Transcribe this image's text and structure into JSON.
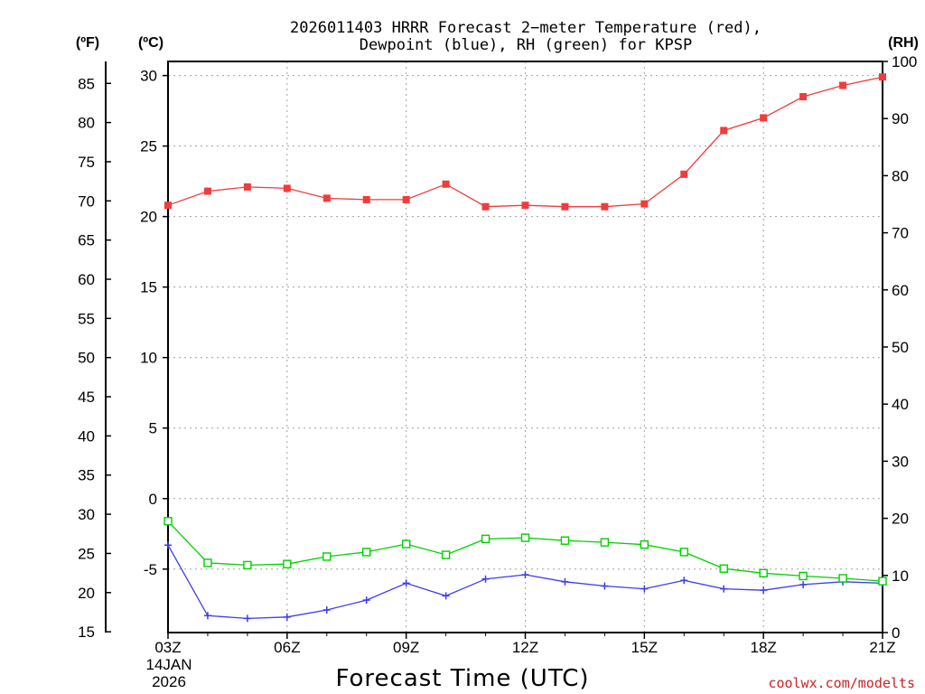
{
  "chart_data": {
    "type": "line",
    "title_line1": "2026011403 HRRR Forecast 2−meter Temperature (red),",
    "title_line2": "Dewpoint (blue), RH (green) for KPSP",
    "xlabel": "Forecast Time (UTC)",
    "credit": "coolwx.com/modelts",
    "units": {
      "fahrenheit": "(ºF)",
      "celsius": "(ºC)",
      "rh": "(RH)"
    },
    "x_hours": [
      3,
      4,
      5,
      6,
      7,
      8,
      9,
      10,
      11,
      12,
      13,
      14,
      15,
      16,
      17,
      18,
      19,
      20,
      21
    ],
    "x_ticks": [
      {
        "hour": 3,
        "label": "03Z"
      },
      {
        "hour": 6,
        "label": "06Z"
      },
      {
        "hour": 9,
        "label": "09Z"
      },
      {
        "hour": 12,
        "label": "12Z"
      },
      {
        "hour": 15,
        "label": "15Z"
      },
      {
        "hour": 18,
        "label": "18Z"
      },
      {
        "hour": 21,
        "label": "21Z"
      }
    ],
    "date_labels": [
      "14JAN",
      "2026"
    ],
    "celsius_axis": {
      "min": -9.5,
      "max": 31,
      "ticks": [
        -5,
        0,
        5,
        10,
        15,
        20,
        25,
        30
      ]
    },
    "fahrenheit_ticks": [
      15,
      20,
      25,
      30,
      35,
      40,
      45,
      50,
      55,
      60,
      65,
      70,
      75,
      80,
      85
    ],
    "rh_axis": {
      "min": 0,
      "max": 100,
      "ticks": [
        0,
        10,
        20,
        30,
        40,
        50,
        60,
        70,
        80,
        90,
        100
      ]
    },
    "series": [
      {
        "name": "Temperature",
        "axis": "celsius",
        "color": "#f03c3c",
        "marker": "filled-square",
        "values": [
          20.8,
          21.8,
          22.1,
          22.0,
          21.3,
          21.2,
          21.2,
          22.3,
          20.7,
          20.8,
          20.7,
          20.7,
          20.9,
          23.0,
          26.1,
          27.0,
          28.5,
          29.3,
          29.9
        ]
      },
      {
        "name": "Dewpoint",
        "axis": "celsius",
        "color": "#3c3cf0",
        "marker": "plus",
        "values": [
          -3.3,
          -8.3,
          -8.5,
          -8.4,
          -7.9,
          -7.2,
          -6.0,
          -6.9,
          -5.7,
          -5.4,
          -5.9,
          -6.2,
          -6.4,
          -5.8,
          -6.4,
          -6.5,
          -6.1,
          -5.9,
          -6.0
        ]
      },
      {
        "name": "RH",
        "axis": "rh",
        "color": "#00d000",
        "marker": "open-square",
        "values": [
          19.5,
          12.2,
          11.8,
          12.0,
          13.3,
          14.1,
          15.5,
          13.6,
          16.4,
          16.6,
          16.1,
          15.8,
          15.4,
          14.1,
          11.2,
          10.4,
          9.9,
          9.5,
          9.0
        ]
      }
    ]
  }
}
